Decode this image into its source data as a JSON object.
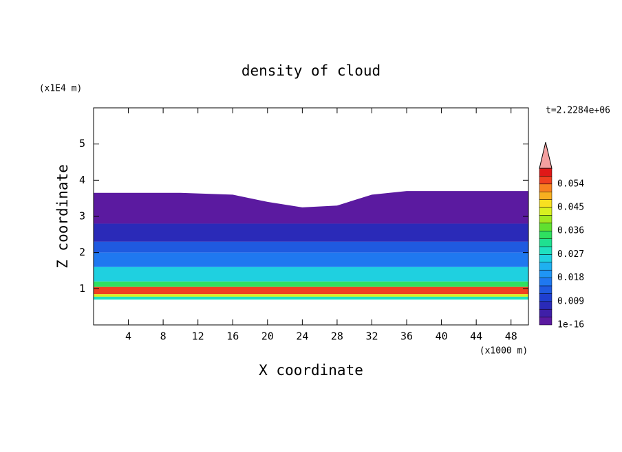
{
  "chart_data": {
    "type": "contour",
    "title": "density of cloud",
    "xlabel": "X coordinate",
    "ylabel": "Z coordinate",
    "xunit": "(x1000 m)",
    "yunit": "(x1E4 m)",
    "time_label": "t=2.2284e+06",
    "xlim": [
      0,
      50
    ],
    "xticks": [
      4,
      8,
      12,
      16,
      20,
      24,
      28,
      32,
      36,
      40,
      44,
      48
    ],
    "ylim": [
      0,
      6
    ],
    "yticks": [
      1,
      2,
      3,
      4,
      5
    ],
    "levels": [
      1e-16,
      0.003,
      0.006,
      0.009,
      0.012,
      0.015,
      0.018,
      0.021,
      0.024,
      0.027,
      0.03,
      0.033,
      0.036,
      0.039,
      0.042,
      0.045,
      0.048,
      0.051,
      0.054,
      0.057,
      0.06
    ],
    "colors": [
      "#5b1aa0",
      "#3f1fa8",
      "#2a2ab8",
      "#1f3fd0",
      "#1f5ae0",
      "#1f78f0",
      "#1f95f5",
      "#1fb0f0",
      "#1fd0e0",
      "#1fe0c0",
      "#1fe090",
      "#2fe060",
      "#60e030",
      "#a0e820",
      "#d8f020",
      "#f8e020",
      "#f8b020",
      "#f88020",
      "#f04020",
      "#e01818"
    ],
    "extend_color": "#f4a0a0",
    "cbticks": [
      1e-16,
      0.009,
      0.018,
      0.027,
      0.036,
      0.045,
      0.054
    ],
    "cloud_top": {
      "x": [
        0,
        10,
        16,
        20,
        24,
        28,
        32,
        36,
        50
      ],
      "z": [
        3.65,
        3.65,
        3.6,
        3.4,
        3.25,
        3.3,
        3.6,
        3.7,
        3.7
      ],
      "level": 0
    },
    "field": [
      {
        "z": [
          2.3,
          2.8
        ],
        "level": 2
      },
      {
        "z": [
          2.0,
          2.3
        ],
        "level": 4
      },
      {
        "z": [
          1.6,
          2.0
        ],
        "level": 5
      },
      {
        "z": [
          1.2,
          1.6
        ],
        "level": 8
      },
      {
        "z": [
          1.05,
          1.2
        ],
        "level": 11
      },
      {
        "z": [
          0.85,
          1.05
        ],
        "level": 18
      },
      {
        "z": [
          0.78,
          0.85
        ],
        "level": 14
      },
      {
        "z": [
          0.7,
          0.78
        ],
        "level": 9
      }
    ]
  }
}
